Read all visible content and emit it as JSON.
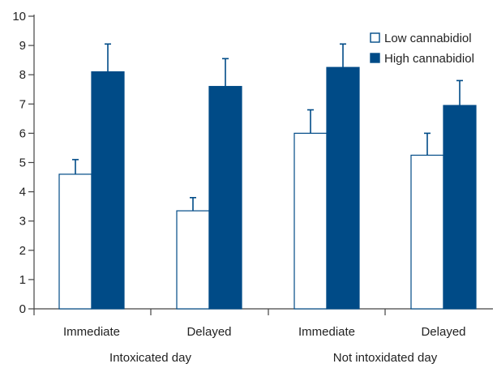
{
  "chart_data": {
    "type": "bar",
    "title": "",
    "xlabel": "",
    "ylabel": "",
    "ylim": [
      0,
      10
    ],
    "yticks": [
      "0",
      "1",
      "2",
      "3",
      "4",
      "5",
      "6",
      "7",
      "8",
      "9",
      "10"
    ],
    "grid": false,
    "legend_position": "top-right",
    "categories": [
      "Immediate",
      "Delayed",
      "Immediate",
      "Delayed"
    ],
    "groups": [
      {
        "label": "Intoxicated day",
        "categories": [
          0,
          1
        ]
      },
      {
        "label": "Not intoxidated day",
        "categories": [
          2,
          3
        ]
      }
    ],
    "series": [
      {
        "name": "Low cannabidiol",
        "values": [
          4.6,
          3.35,
          6.0,
          5.25
        ],
        "errors": [
          0.5,
          0.45,
          0.8,
          0.75
        ],
        "fill": "#ffffff",
        "stroke": "#004b87"
      },
      {
        "name": "High cannabidiol",
        "values": [
          8.1,
          7.6,
          8.25,
          6.95
        ],
        "errors": [
          0.95,
          0.95,
          0.8,
          0.85
        ],
        "fill": "#004b87",
        "stroke": "#004b87"
      }
    ]
  }
}
